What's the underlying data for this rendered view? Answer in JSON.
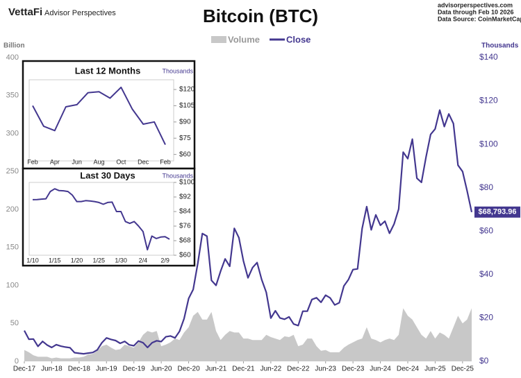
{
  "header": {
    "brand": "VettaFi",
    "brand_sub": "Advisor Perspectives",
    "site": "advisorperspectives.com",
    "data_through": "Data through Feb 10 2026",
    "source": "Data Source: CoinMarketCap"
  },
  "chart_data": [
    {
      "type": "line",
      "title": "Bitcoin (BTC)",
      "ylabel": "Billion",
      "y2label": "Thousands",
      "x": [
        "2017-12",
        "2018-01",
        "2018-02",
        "2018-03",
        "2018-04",
        "2018-05",
        "2018-06",
        "2018-07",
        "2018-08",
        "2018-09",
        "2018-10",
        "2018-11",
        "2018-12",
        "2019-01",
        "2019-02",
        "2019-03",
        "2019-04",
        "2019-05",
        "2019-06",
        "2019-07",
        "2019-08",
        "2019-09",
        "2019-10",
        "2019-11",
        "2019-12",
        "2020-01",
        "2020-02",
        "2020-03",
        "2020-04",
        "2020-05",
        "2020-06",
        "2020-07",
        "2020-08",
        "2020-09",
        "2020-10",
        "2020-11",
        "2020-12",
        "2021-01",
        "2021-02",
        "2021-03",
        "2021-04",
        "2021-05",
        "2021-06",
        "2021-07",
        "2021-08",
        "2021-09",
        "2021-10",
        "2021-11",
        "2021-12",
        "2022-01",
        "2022-02",
        "2022-03",
        "2022-04",
        "2022-05",
        "2022-06",
        "2022-07",
        "2022-08",
        "2022-09",
        "2022-10",
        "2022-11",
        "2022-12",
        "2023-01",
        "2023-02",
        "2023-03",
        "2023-04",
        "2023-05",
        "2023-06",
        "2023-07",
        "2023-08",
        "2023-09",
        "2023-10",
        "2023-11",
        "2023-12",
        "2024-01",
        "2024-02",
        "2024-03",
        "2024-04",
        "2024-05",
        "2024-06",
        "2024-07",
        "2024-08",
        "2024-09",
        "2024-10",
        "2024-11",
        "2024-12",
        "2025-01",
        "2025-02",
        "2025-03",
        "2025-04",
        "2025-05",
        "2025-06",
        "2025-07",
        "2025-08",
        "2025-09",
        "2025-10",
        "2025-11",
        "2025-12",
        "2026-01",
        "2026-02"
      ],
      "xlim": [
        "2017-12",
        "2026-02"
      ],
      "xticks": [
        {
          "value": "2017-12",
          "label": "Dec-17"
        },
        {
          "value": "2018-06",
          "label": "Jun-18"
        },
        {
          "value": "2018-12",
          "label": "Dec-18"
        },
        {
          "value": "2019-06",
          "label": "Jun-19"
        },
        {
          "value": "2019-12",
          "label": "Dec-19"
        },
        {
          "value": "2020-06",
          "label": "Jun-20"
        },
        {
          "value": "2020-12",
          "label": "Dec-20"
        },
        {
          "value": "2021-06",
          "label": "Jun-21"
        },
        {
          "value": "2021-12",
          "label": "Dec-21"
        },
        {
          "value": "2022-06",
          "label": "Jun-22"
        },
        {
          "value": "2022-12",
          "label": "Dec-22"
        },
        {
          "value": "2023-06",
          "label": "Jun-23"
        },
        {
          "value": "2023-12",
          "label": "Dec-23"
        },
        {
          "value": "2024-06",
          "label": "Jun-24"
        },
        {
          "value": "2024-12",
          "label": "Dec-24"
        },
        {
          "value": "2025-06",
          "label": "Jun-25"
        },
        {
          "value": "2025-12",
          "label": "Dec-25"
        }
      ],
      "ylim": [
        0,
        400
      ],
      "yticks": [
        0,
        50,
        100,
        150,
        200,
        250,
        300,
        350,
        400
      ],
      "y2lim": [
        0,
        140
      ],
      "y2ticks": [
        {
          "value": 0,
          "label": "$0"
        },
        {
          "value": 20,
          "label": "$20"
        },
        {
          "value": 40,
          "label": "$40"
        },
        {
          "value": 60,
          "label": "$60"
        },
        {
          "value": 80,
          "label": "$80"
        },
        {
          "value": 100,
          "label": "$100"
        },
        {
          "value": 120,
          "label": "$120"
        },
        {
          "value": 140,
          "label": "$140"
        }
      ],
      "series": [
        {
          "name": "Volume",
          "color": "#c8c8c8",
          "values": [
            15,
            12,
            8,
            6,
            6,
            6,
            4,
            5,
            4,
            4,
            4,
            5,
            5,
            6,
            9,
            10,
            14,
            20,
            22,
            18,
            15,
            16,
            22,
            20,
            18,
            25,
            35,
            40,
            38,
            40,
            20,
            22,
            25,
            30,
            28,
            38,
            45,
            60,
            65,
            55,
            55,
            65,
            40,
            28,
            35,
            40,
            38,
            38,
            30,
            30,
            28,
            28,
            28,
            35,
            32,
            30,
            28,
            33,
            32,
            35,
            20,
            22,
            30,
            30,
            20,
            14,
            15,
            12,
            12,
            12,
            18,
            22,
            25,
            28,
            30,
            45,
            30,
            28,
            25,
            28,
            30,
            28,
            35,
            70,
            60,
            55,
            45,
            35,
            30,
            40,
            30,
            38,
            35,
            30,
            45,
            60,
            50,
            55,
            70
          ]
        },
        {
          "name": "Close",
          "color": "#43378f",
          "axis": "y2",
          "values": [
            14.2,
            10.2,
            10.3,
            6.9,
            9.2,
            7.5,
            6.4,
            7.7,
            7.0,
            6.6,
            6.3,
            4.0,
            3.7,
            3.5,
            3.8,
            4.1,
            5.3,
            8.6,
            10.8,
            10.1,
            9.6,
            8.3,
            9.2,
            7.6,
            7.2,
            9.4,
            8.6,
            6.4,
            8.6,
            9.5,
            9.1,
            11.3,
            11.7,
            10.8,
            13.8,
            19.7,
            29.0,
            33.1,
            45.1,
            58.9,
            57.7,
            37.3,
            35.0,
            41.6,
            47.2,
            43.8,
            61.3,
            57.0,
            46.3,
            38.5,
            43.2,
            45.5,
            37.7,
            31.8,
            19.9,
            23.3,
            20.0,
            19.4,
            20.5,
            17.2,
            16.5,
            23.1,
            23.1,
            28.5,
            29.3,
            27.2,
            30.5,
            29.2,
            26.0,
            27.0,
            34.7,
            37.7,
            42.3,
            42.6,
            61.2,
            71.3,
            60.6,
            67.5,
            62.7,
            64.6,
            59.0,
            63.3,
            70.2,
            96.4,
            93.4,
            102.4,
            84.4,
            82.5,
            94.2,
            104.6,
            107.1,
            115.8,
            108.2,
            114.0,
            109.6,
            90.4,
            87.5,
            78.6,
            68.79396
          ],
          "end_label": "$68,793.96"
        }
      ]
    },
    {
      "type": "line",
      "title": "Last 12 Months",
      "ylabel": "Thousands",
      "color": "#43378f",
      "categories": [
        "Feb",
        null,
        "Apr",
        null,
        "Jun",
        null,
        "Aug",
        null,
        "Oct",
        null,
        "Dec",
        null,
        "Feb"
      ],
      "values": [
        105,
        86,
        82,
        104,
        106,
        117,
        118,
        112,
        122,
        102,
        88,
        90,
        69
      ],
      "ylim": [
        54,
        129
      ],
      "yticks": [
        {
          "value": 60,
          "label": "$60"
        },
        {
          "value": 75,
          "label": "$75"
        },
        {
          "value": 90,
          "label": "$90"
        },
        {
          "value": 105,
          "label": "$105"
        },
        {
          "value": 120,
          "label": "$120"
        }
      ]
    },
    {
      "type": "line",
      "title": "Last 30 Days",
      "ylabel": "Thousands",
      "color": "#43378f",
      "categories": [
        "1/10",
        null,
        null,
        null,
        null,
        "1/15",
        null,
        null,
        null,
        null,
        "1/20",
        null,
        null,
        null,
        null,
        "1/25",
        null,
        null,
        null,
        null,
        "1/30",
        null,
        null,
        null,
        null,
        "2/4",
        null,
        null,
        null,
        null,
        "2/9",
        null
      ],
      "values": [
        90.5,
        90.6,
        90.8,
        91,
        95,
        96.5,
        95.5,
        95.4,
        95,
        93,
        89.5,
        89.5,
        90,
        89.8,
        89.5,
        89,
        88,
        89,
        89.2,
        84,
        84,
        78.5,
        77.5,
        78.5,
        76,
        73,
        63,
        70.5,
        69.2,
        70,
        70.2,
        68.8
      ],
      "ylim": [
        60,
        100
      ],
      "yticks": [
        {
          "value": 60,
          "label": "$60"
        },
        {
          "value": 68,
          "label": "$68"
        },
        {
          "value": 76,
          "label": "$76"
        },
        {
          "value": 84,
          "label": "$84"
        },
        {
          "value": 92,
          "label": "$92"
        },
        {
          "value": 100,
          "label": "$100"
        }
      ]
    }
  ]
}
